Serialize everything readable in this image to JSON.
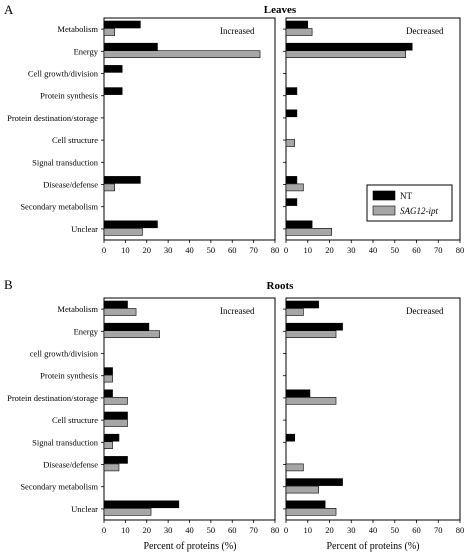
{
  "figure": {
    "colors": {
      "NT": "#000000",
      "SAG12-ipt": "#a6a6a6",
      "axis": "#000000"
    },
    "categories_leaves": [
      "Metabolism",
      "Energy",
      "Cell growth/division",
      "Protein synthesis",
      "Protein destination/storage",
      "Cell structure",
      "Signal transduction",
      "Disease/defense",
      "Secondary metabolism",
      "Unclear"
    ],
    "categories_roots": [
      "Metabolism",
      "Energy",
      "cell growth/division",
      "Protein synthesis",
      "Protein destination/storage",
      "Cell structure",
      "Signal transduction",
      "Disease/defense",
      "Secondary metabolism",
      "Unclear"
    ],
    "ticks": [
      "0",
      "10",
      "20",
      "30",
      "40",
      "50",
      "60",
      "70",
      "80"
    ]
  },
  "chart_data": [
    {
      "type": "bar",
      "orientation": "horizontal",
      "panel_letter": "A",
      "title": "Leaves",
      "subplot": "Increased",
      "xlabel": "",
      "xlim": [
        0,
        80
      ],
      "categories": [
        "Metabolism",
        "Energy",
        "Cell growth/division",
        "Protein synthesis",
        "Protein destination/storage",
        "Cell structure",
        "Signal transduction",
        "Disease/defense",
        "Secondary metabolism",
        "Unclear"
      ],
      "series": [
        {
          "name": "NT",
          "values": [
            17,
            25,
            8.5,
            8.5,
            0,
            0,
            0,
            17,
            0,
            25
          ]
        },
        {
          "name": "SAG12-ipt",
          "values": [
            5,
            73,
            0,
            0,
            0,
            0,
            0,
            5,
            0,
            18
          ]
        }
      ]
    },
    {
      "type": "bar",
      "orientation": "horizontal",
      "panel_letter": "",
      "title": "",
      "subplot": "Decreased",
      "xlabel": "",
      "xlim": [
        0,
        80
      ],
      "categories": [
        "Metabolism",
        "Energy",
        "Cell growth/division",
        "Protein synthesis",
        "Protein destination/storage",
        "Cell structure",
        "Signal transduction",
        "Disease/defense",
        "Secondary metabolism",
        "Unclear"
      ],
      "series": [
        {
          "name": "NT",
          "values": [
            10,
            58,
            0,
            5,
            5,
            0,
            0,
            5,
            5,
            12
          ]
        },
        {
          "name": "SAG12-ipt",
          "values": [
            12,
            55,
            0,
            0,
            0,
            4,
            0,
            8,
            0,
            21
          ]
        }
      ],
      "legend": {
        "position": "right",
        "entries": [
          "NT",
          "SAG12-ipt"
        ]
      }
    },
    {
      "type": "bar",
      "orientation": "horizontal",
      "panel_letter": "B",
      "title": "Roots",
      "subplot": "Increased",
      "xlabel": "Percent of proteins (%)",
      "xlim": [
        0,
        80
      ],
      "categories": [
        "Metabolism",
        "Energy",
        "cell growth/division",
        "Protein synthesis",
        "Protein destination/storage",
        "Cell structure",
        "Signal transduction",
        "Disease/defense",
        "Secondary metabolism",
        "Unclear"
      ],
      "series": [
        {
          "name": "NT",
          "values": [
            11,
            21,
            0,
            4,
            4,
            11,
            7,
            11,
            0,
            35
          ]
        },
        {
          "name": "SAG12-ipt",
          "values": [
            15,
            26,
            0,
            4,
            11,
            11,
            4,
            7,
            0,
            22
          ]
        }
      ]
    },
    {
      "type": "bar",
      "orientation": "horizontal",
      "panel_letter": "",
      "title": "",
      "subplot": "Decreased",
      "xlabel": "Percent of proteins (%)",
      "xlim": [
        0,
        80
      ],
      "categories": [
        "Metabolism",
        "Energy",
        "cell growth/division",
        "Protein synthesis",
        "Protein destination/storage",
        "Cell structure",
        "Signal transduction",
        "Disease/defense",
        "Secondary metabolism",
        "Unclear"
      ],
      "series": [
        {
          "name": "NT",
          "values": [
            15,
            26,
            0,
            0,
            11,
            0,
            4,
            0,
            26,
            18
          ]
        },
        {
          "name": "SAG12-ipt",
          "values": [
            8,
            23,
            0,
            0,
            23,
            0,
            0,
            8,
            15,
            23
          ]
        }
      ]
    }
  ]
}
